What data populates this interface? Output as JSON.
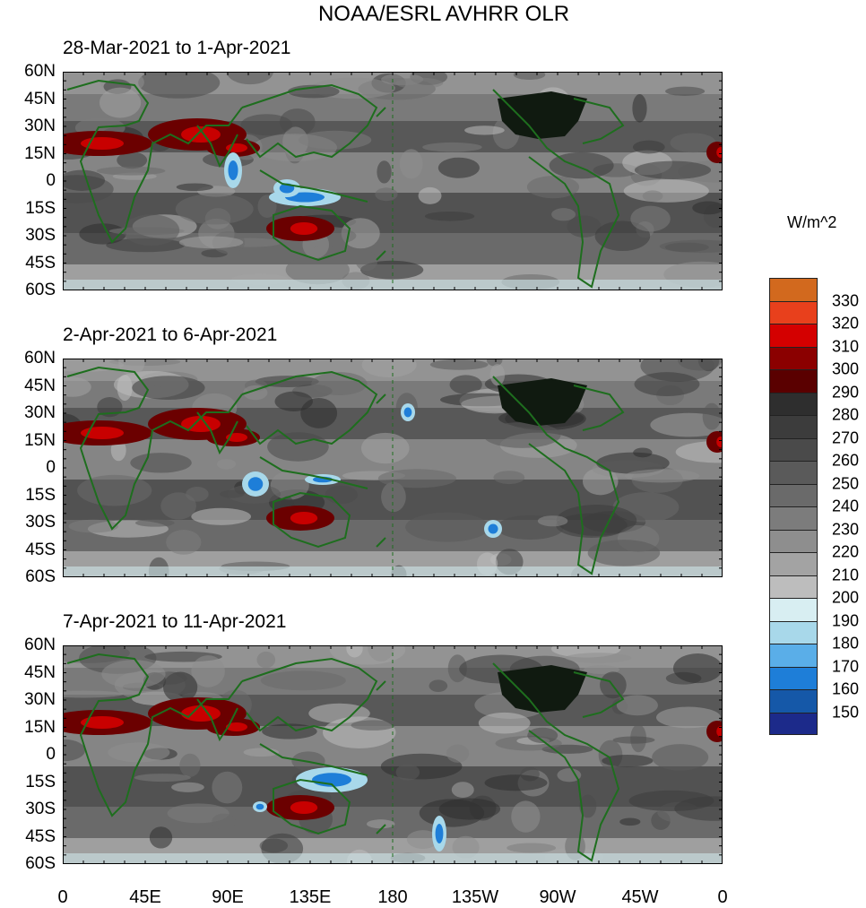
{
  "title": "NOAA/ESRL AVHRR OLR",
  "units_label": "W/m^2",
  "panels": [
    {
      "title": "28-Mar-2021 to 1-Apr-2021"
    },
    {
      "title": "2-Apr-2021 to 6-Apr-2021"
    },
    {
      "title": "7-Apr-2021 to 11-Apr-2021"
    }
  ],
  "lat_labels": [
    "60N",
    "45N",
    "30N",
    "15N",
    "0",
    "15S",
    "30S",
    "45S",
    "60S"
  ],
  "lon_labels": [
    "0",
    "45E",
    "90E",
    "135E",
    "180",
    "135W",
    "90W",
    "45W",
    "0"
  ],
  "colorbar": {
    "labels": [
      "330",
      "320",
      "310",
      "300",
      "290",
      "280",
      "270",
      "260",
      "250",
      "240",
      "230",
      "220",
      "210",
      "200",
      "190",
      "180",
      "170",
      "160",
      "150"
    ],
    "colors": [
      "#d2691e",
      "#e8401c",
      "#d40000",
      "#8b0000",
      "#5a0000",
      "#2e2e2e",
      "#3c3c3c",
      "#4a4a4a",
      "#5a5a5a",
      "#6a6a6a",
      "#7c7c7c",
      "#8e8e8e",
      "#a3a3a3",
      "#bdbdbd",
      "#d8eef2",
      "#a8d8ea",
      "#5aaee8",
      "#1e7ed8",
      "#1558a8",
      "#1c2a8a"
    ]
  }
}
